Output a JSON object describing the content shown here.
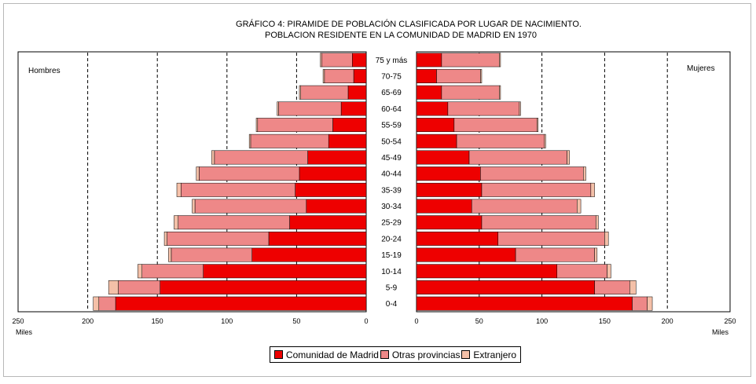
{
  "chart_data": {
    "type": "bar",
    "title": "GRÁFICO 4: PIRAMIDE DE POBLACIÓN CLASIFICADA POR LUGAR DE NACIMIENTO.",
    "subtitle": "POBLACION RESIDENTE EN LA COMUNIDAD DE MADRID EN 1970",
    "left_label": "Hombres",
    "right_label": "Mujeres",
    "unit_label": "Miles",
    "xlim": [
      0,
      250
    ],
    "x_ticks": [
      "0",
      "50",
      "100",
      "150",
      "200",
      "250"
    ],
    "gridlines": [
      50,
      100,
      150,
      200
    ],
    "categories": [
      "75 y más",
      "70-75",
      "65-69",
      "60-64",
      "55-59",
      "50-54",
      "45-49",
      "40-44",
      "35-39",
      "30-34",
      "25-29",
      "20-24",
      "15-19",
      "10-14",
      "5-9",
      "0-4"
    ],
    "series": [
      {
        "name": "Comunidad de Madrid",
        "color": "#ee0000",
        "men": [
          10,
          9,
          13,
          18,
          24,
          27,
          42,
          48,
          51,
          43,
          55,
          70,
          82,
          117,
          148,
          180
        ],
        "women": [
          20,
          16,
          20,
          25,
          30,
          32,
          42,
          51,
          52,
          44,
          52,
          65,
          79,
          112,
          142,
          172
        ]
      },
      {
        "name": "Otras provincias",
        "color": "#ee8888",
        "men": [
          22,
          21,
          34,
          45,
          54,
          56,
          67,
          72,
          82,
          80,
          80,
          73,
          58,
          44,
          30,
          12
        ],
        "women": [
          46,
          35,
          46,
          57,
          66,
          70,
          78,
          82,
          87,
          84,
          91,
          85,
          63,
          40,
          28,
          12
        ]
      },
      {
        "name": "Extranjero",
        "color": "#f4c0a8",
        "men": [
          1,
          1,
          1,
          1,
          1,
          1,
          2,
          2,
          3,
          2,
          3,
          2,
          2,
          3,
          7,
          4
        ],
        "women": [
          1,
          1,
          1,
          1,
          1,
          1,
          2,
          2,
          3,
          3,
          2,
          3,
          2,
          3,
          5,
          4
        ]
      }
    ]
  }
}
